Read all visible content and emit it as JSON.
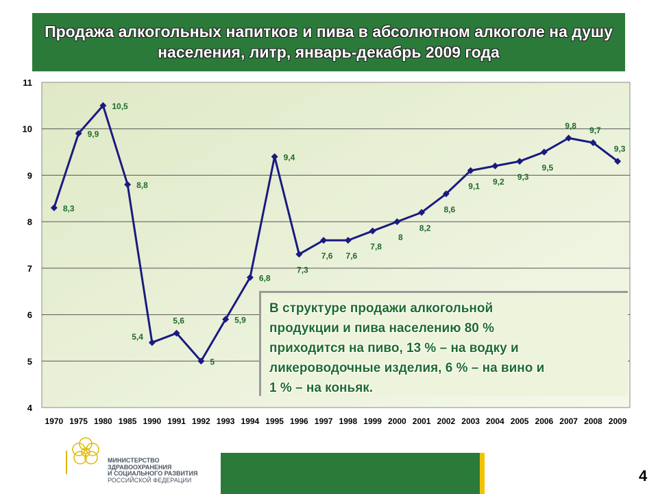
{
  "title": "Продажа алкогольных напитков и пива в абсолютном алкоголе  на душу населения, литр, январь-декабрь 2009 года",
  "chart_data": {
    "type": "line",
    "title": "Продажа алкогольных напитков и пива в абсолютном алкоголе  на душу населения, литр, январь-декабрь 2009 года",
    "categories": [
      "1970",
      "1975",
      "1980",
      "1985",
      "1990",
      "1991",
      "1992",
      "1993",
      "1994",
      "1995",
      "1996",
      "1997",
      "1998",
      "1999",
      "2000",
      "2001",
      "2002",
      "2003",
      "2004",
      "2005",
      "2006",
      "2007",
      "2008",
      "2009"
    ],
    "series": [
      {
        "values": [
          8.3,
          9.9,
          10.5,
          8.8,
          5.4,
          5.6,
          5.0,
          5.9,
          6.8,
          9.4,
          7.3,
          7.6,
          7.6,
          7.8,
          8.0,
          8.2,
          8.6,
          9.1,
          9.2,
          9.3,
          9.5,
          9.8,
          9.7,
          9.3
        ]
      }
    ],
    "data_labels": [
      "8,3",
      "9,9",
      "10,5",
      "8,8",
      "5,4",
      "5,6",
      "5",
      "5,9",
      "6,8",
      "9,4",
      "7,3",
      "7,6",
      "7,6",
      "7,8",
      "8",
      "8,2",
      "8,6",
      "9,1",
      "9,2",
      "9,3",
      "9,5",
      "9,8",
      "9,7",
      "9,3"
    ],
    "label_positions": [
      "right",
      "right",
      "right",
      "right",
      "left",
      "above",
      "right",
      "right",
      "right",
      "right",
      "below",
      "below",
      "below",
      "below",
      "below",
      "below",
      "below",
      "below",
      "below",
      "below",
      "below",
      "above",
      "above",
      "above"
    ],
    "ylim": [
      4,
      11
    ],
    "yticks": [
      "4",
      "5",
      "6",
      "7",
      "8",
      "9",
      "10",
      "11"
    ],
    "xlabel": "",
    "ylabel": "",
    "grid": true,
    "line_color": "#1a1a80",
    "label_color": "#1e6b2a",
    "plot_background": "#e8f0d4"
  },
  "note": [
    "В структуре продажи алкогольной",
    "продукции и пива населению 80 %",
    "приходится на пиво, 13 % – на водку и",
    "ликероводочные изделия, 6 % – на вино и",
    "1 % – на коньяк."
  ],
  "logo": {
    "icon": "ministry-emblem-icon",
    "lines": [
      "МИНИСТЕРСТВО",
      "ЗДРАВООХРАНЕНИЯ",
      "И СОЦИАЛЬНОГО РАЗВИТИЯ",
      "РОССИЙСКОЙ ФЕДЕРАЦИИ"
    ]
  },
  "page_number": "4",
  "colors": {
    "accent_green": "#2b7a3a",
    "accent_yellow": "#f2c200"
  }
}
